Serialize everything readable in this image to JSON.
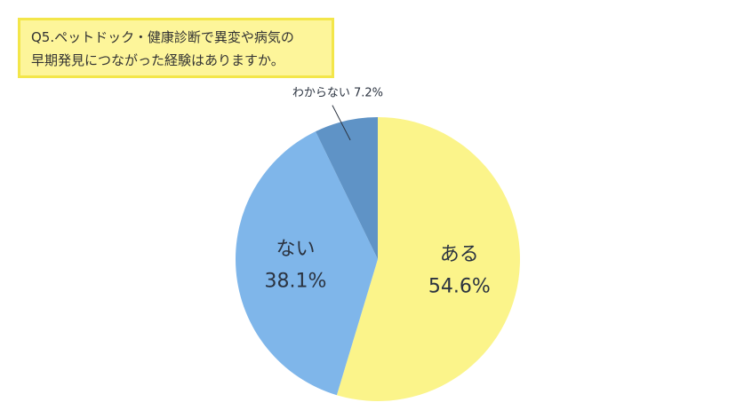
{
  "title_lines": [
    "Q5.ペットドック・健康診断で異変や病気の",
    "早期発見につながった経験はありますか。"
  ],
  "chart_data": {
    "type": "pie",
    "title": "Q5.ペットドック・健康診断で異変や病気の早期発見につながった経験はありますか。",
    "categories": [
      "ある",
      "ない",
      "わからない"
    ],
    "values": [
      54.6,
      38.1,
      7.2
    ],
    "value_labels": [
      "54.6%",
      "38.1%",
      "7.2%"
    ],
    "colors": [
      "#fbf48a",
      "#7fb6ea",
      "#5f93c6"
    ],
    "start": "12 o'clock",
    "direction": "clockwise",
    "legend": "none",
    "label_placement": [
      "inside",
      "inside",
      "outside-callout"
    ]
  }
}
